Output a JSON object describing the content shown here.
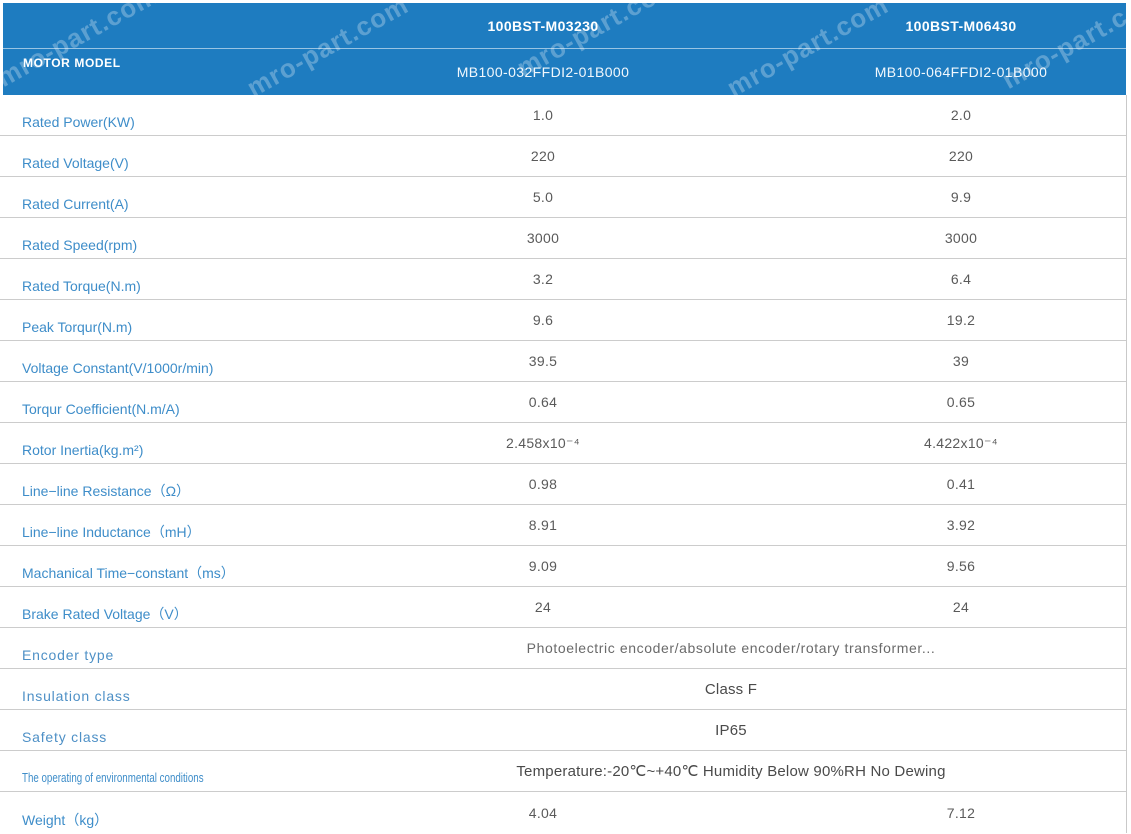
{
  "watermark": "mro-part.com",
  "colors": {
    "header_bg": "#1e7cc0",
    "label_blue": "#3e8dc9",
    "value_gray": "#5a5a5a",
    "grid_line": "#cccccc"
  },
  "header": {
    "row_label": "MOTOR MODEL",
    "columns": [
      {
        "model": "100BST-M03230",
        "code": "MB100-032FFDI2-01B000"
      },
      {
        "model": "100BST-M06430",
        "code": "MB100-064FFDI2-01B000"
      }
    ]
  },
  "rows": [
    {
      "label": "Rated Power(KW)",
      "v1": "1.0",
      "v2": "2.0"
    },
    {
      "label": "Rated Voltage(V)",
      "v1": "220",
      "v2": "220"
    },
    {
      "label": "Rated Current(A)",
      "v1": "5.0",
      "v2": "9.9"
    },
    {
      "label": "Rated Speed(rpm)",
      "v1": "3000",
      "v2": "3000"
    },
    {
      "label": "Rated Torque(N.m)",
      "v1": "3.2",
      "v2": "6.4"
    },
    {
      "label": "Peak Torqur(N.m)",
      "v1": "9.6",
      "v2": "19.2"
    },
    {
      "label": "Voltage Constant(V/1000r/min)",
      "v1": "39.5",
      "v2": "39"
    },
    {
      "label": "Torqur Coefficient(N.m/A)",
      "v1": "0.64",
      "v2": "0.65"
    },
    {
      "label": "Rotor Inertia(kg.m²)",
      "v1": "2.458x10⁻⁴",
      "v2": "4.422x10⁻⁴"
    },
    {
      "label": "Line−line Resistance（Ω）",
      "v1": "0.98",
      "v2": "0.41"
    },
    {
      "label": "Line−line Inductance（mH）",
      "v1": "8.91",
      "v2": "3.92"
    },
    {
      "label": "Machanical Time−constant（ms）",
      "v1": "9.09",
      "v2": "9.56"
    },
    {
      "label": "Brake Rated Voltage（V）",
      "v1": "24",
      "v2": "24"
    },
    {
      "label": "Encoder type",
      "span": "Photoelectric encoder/absolute encoder/rotary transformer..."
    },
    {
      "label": "Insulation class",
      "span": "Class F"
    },
    {
      "label": "Safety class",
      "span": "IP65"
    },
    {
      "label": "The operating of environmental conditions",
      "span": "Temperature:-20℃~+40℃  Humidity Below 90%RH No Dewing"
    },
    {
      "label": "Weight（kg）",
      "v1": "4.04",
      "v2": "7.12"
    }
  ]
}
